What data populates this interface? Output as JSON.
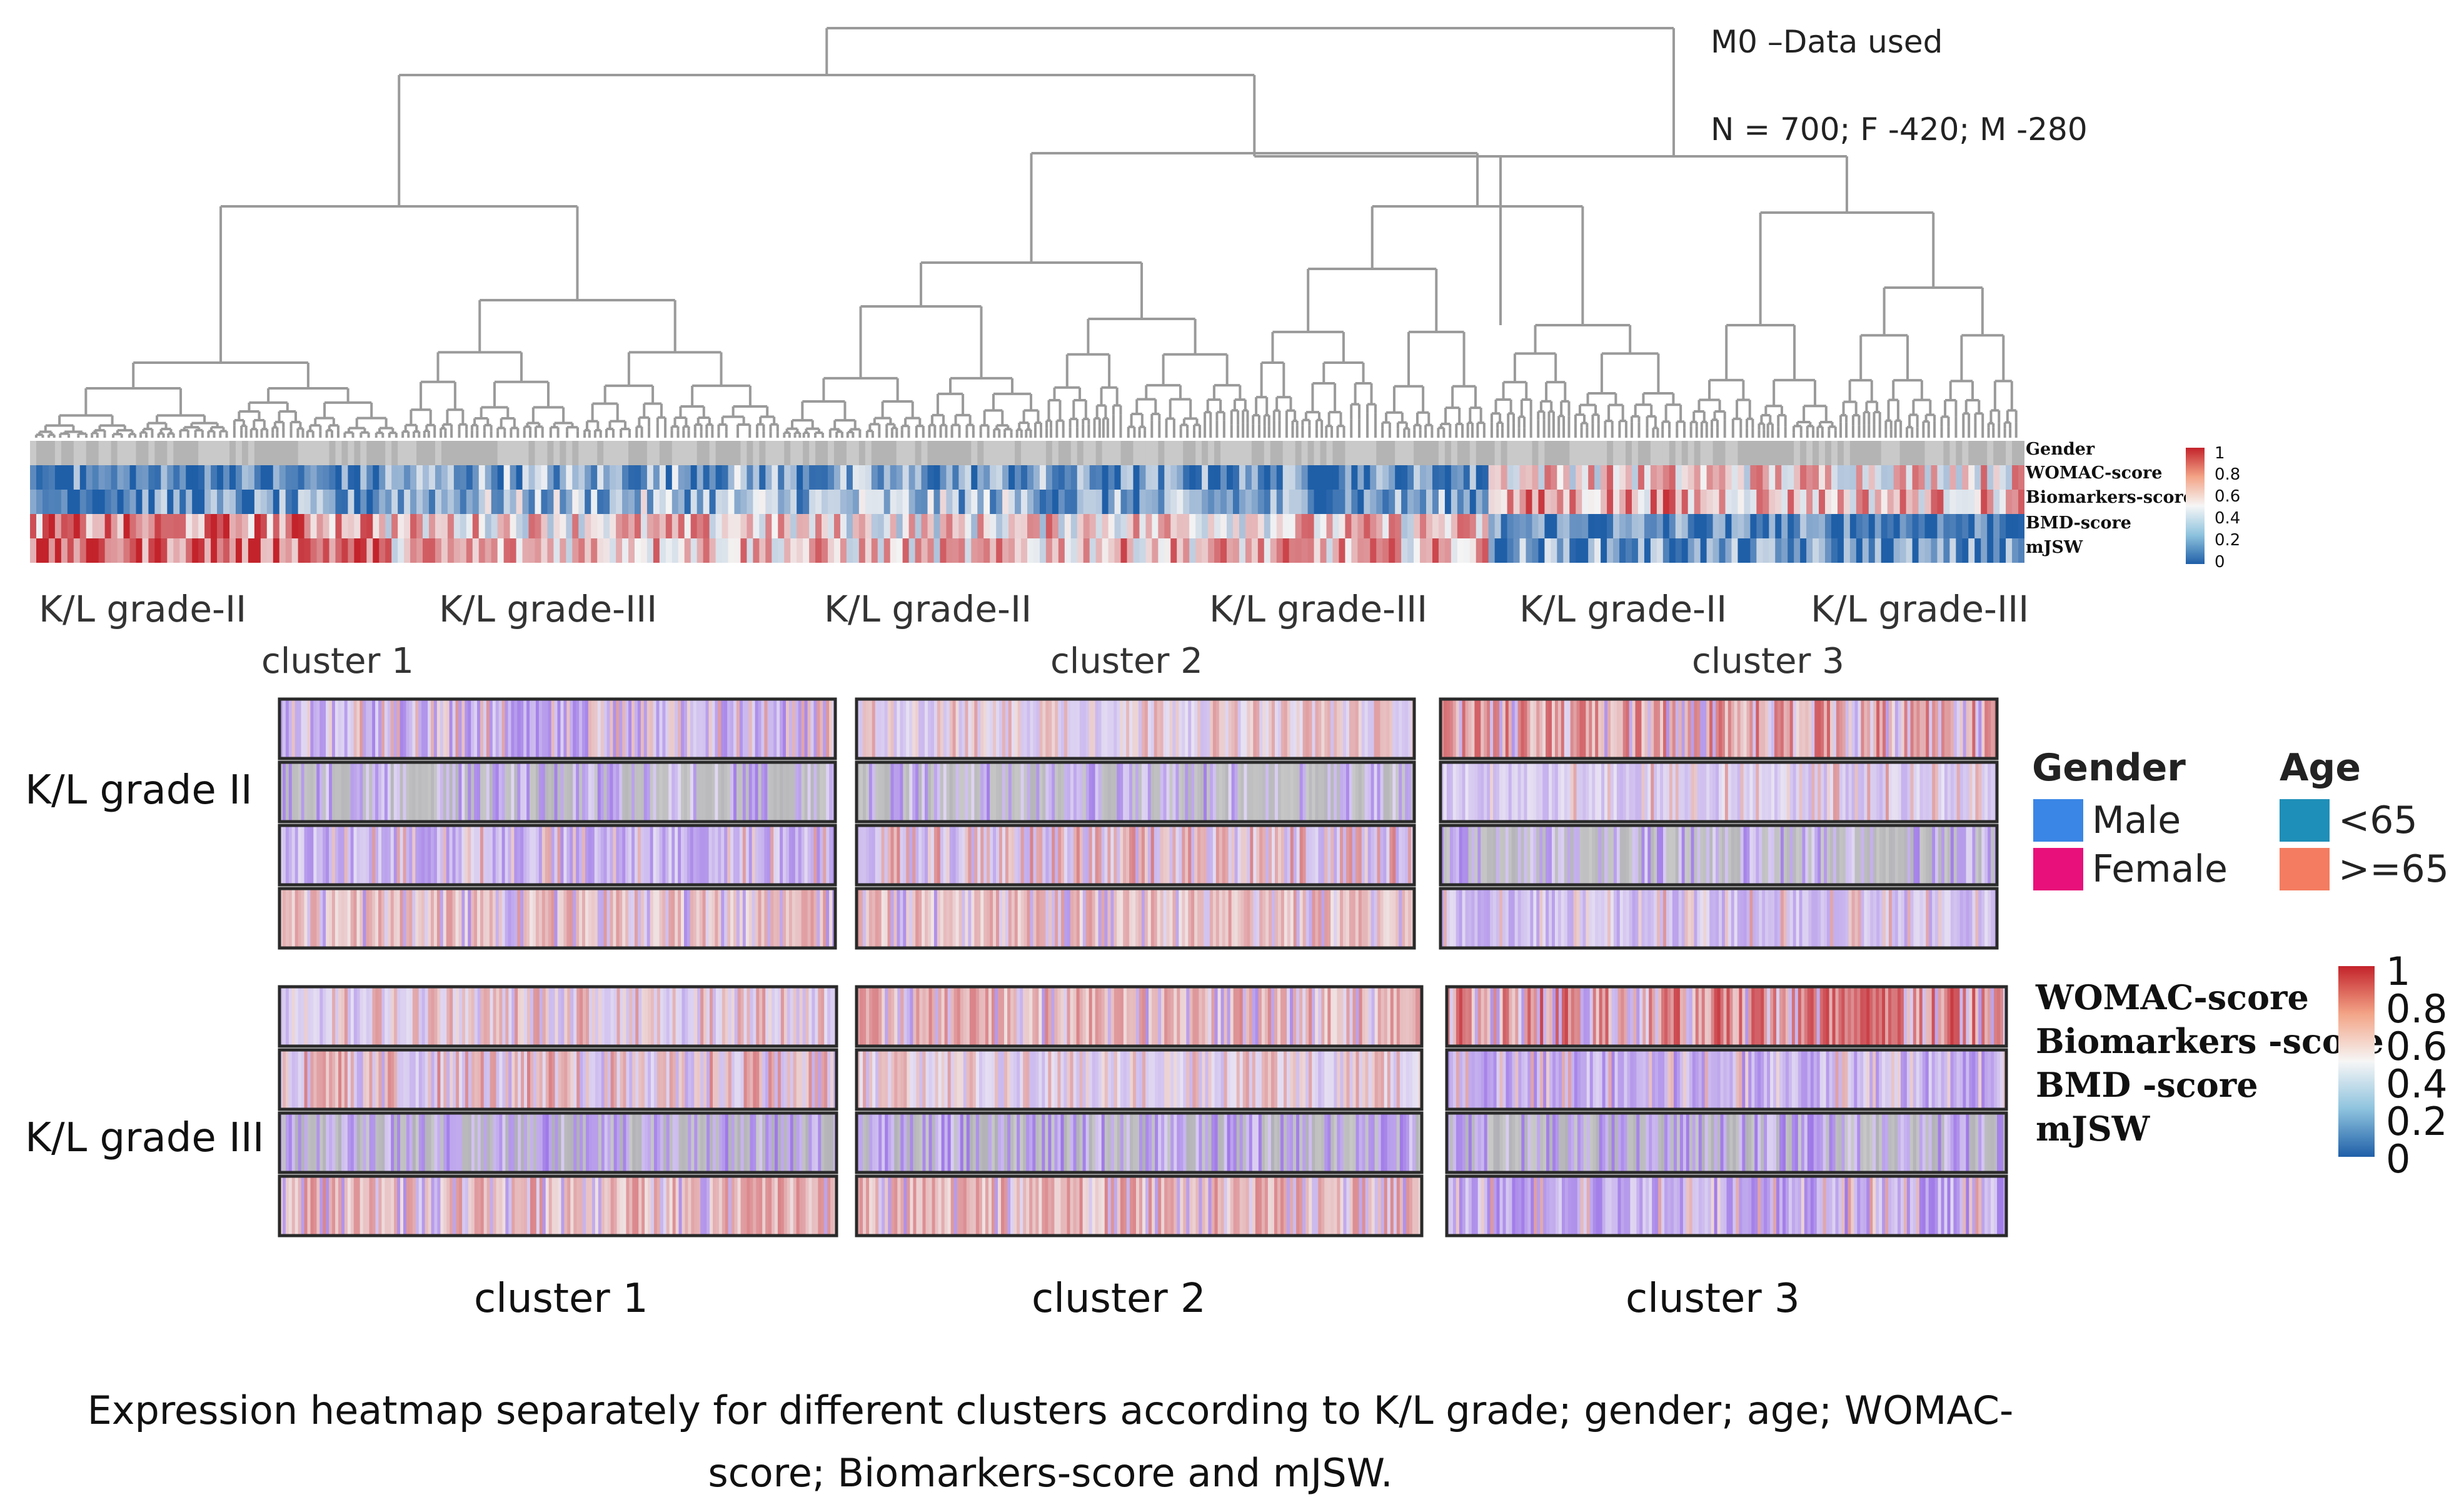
{
  "chart_data": {
    "type": "heatmap",
    "dataset": "M0 –Data used",
    "sample": "N = 700; F -420; M -280",
    "top_heatmap": {
      "row_labels": [
        "Gender",
        "WOMAC-score",
        "Biomarkers-score",
        "BMD-score",
        "mJSW"
      ],
      "color_scale": {
        "min": 0,
        "max": 1,
        "ticks": [
          "0",
          "0.2",
          "0.4",
          "0.6",
          "0.8",
          "1"
        ]
      },
      "group_labels": [
        "K/L grade-II",
        "K/L grade-III",
        "K/L grade-II",
        "K/L grade-III",
        "K/L grade-II",
        "K/L grade-III"
      ],
      "clusters": [
        "cluster 1",
        "cluster 2",
        "cluster 3"
      ],
      "approx_mean_values": {
        "Gender": [
          0.5,
          0.5,
          0.5,
          0.5,
          0.5,
          0.5
        ],
        "WOMAC-score": [
          0.1,
          0.25,
          0.2,
          0.15,
          0.6,
          0.6
        ],
        "Biomarkers-score": [
          0.15,
          0.3,
          0.3,
          0.2,
          0.7,
          0.65
        ],
        "BMD-score": [
          0.75,
          0.6,
          0.55,
          0.6,
          0.15,
          0.1
        ],
        "mJSW": [
          0.85,
          0.65,
          0.6,
          0.65,
          0.2,
          0.15
        ]
      }
    },
    "bottom_heatmaps": {
      "rows": [
        "K/L grade II",
        "K/L grade III"
      ],
      "clusters": [
        "cluster 1",
        "cluster 2",
        "cluster 3"
      ],
      "tracks_per_panel": 4
    },
    "legend": {
      "gender": {
        "title": "Gender",
        "items": [
          {
            "label": "Male",
            "color": "#3a86e6"
          },
          {
            "label": "Female",
            "color": "#e8107a"
          }
        ]
      },
      "age": {
        "title": "Age",
        "items": [
          {
            "label": "<65",
            "color": "#1e8fb8"
          },
          {
            "label": ">=65",
            "color": "#f47c60"
          }
        ]
      },
      "scores": [
        "WOMAC-score",
        "Biomarkers -score",
        "BMD -score",
        "mJSW"
      ],
      "scale_ticks": [
        "1",
        "0.8",
        "0.6",
        "0.4",
        "0.2",
        "0"
      ]
    },
    "caption": [
      "Expression heatmap separately for different clusters according to K/L grade; gender; age; WOMAC-",
      "score; Biomarkers-score and mJSW."
    ]
  },
  "colors": {
    "low": "#1f5fa8",
    "mid": "#f4f4f4",
    "high": "#c3232b",
    "purple": "#8f62e6",
    "gray": "#b6b6b6",
    "tree": "#9a9a9a"
  }
}
